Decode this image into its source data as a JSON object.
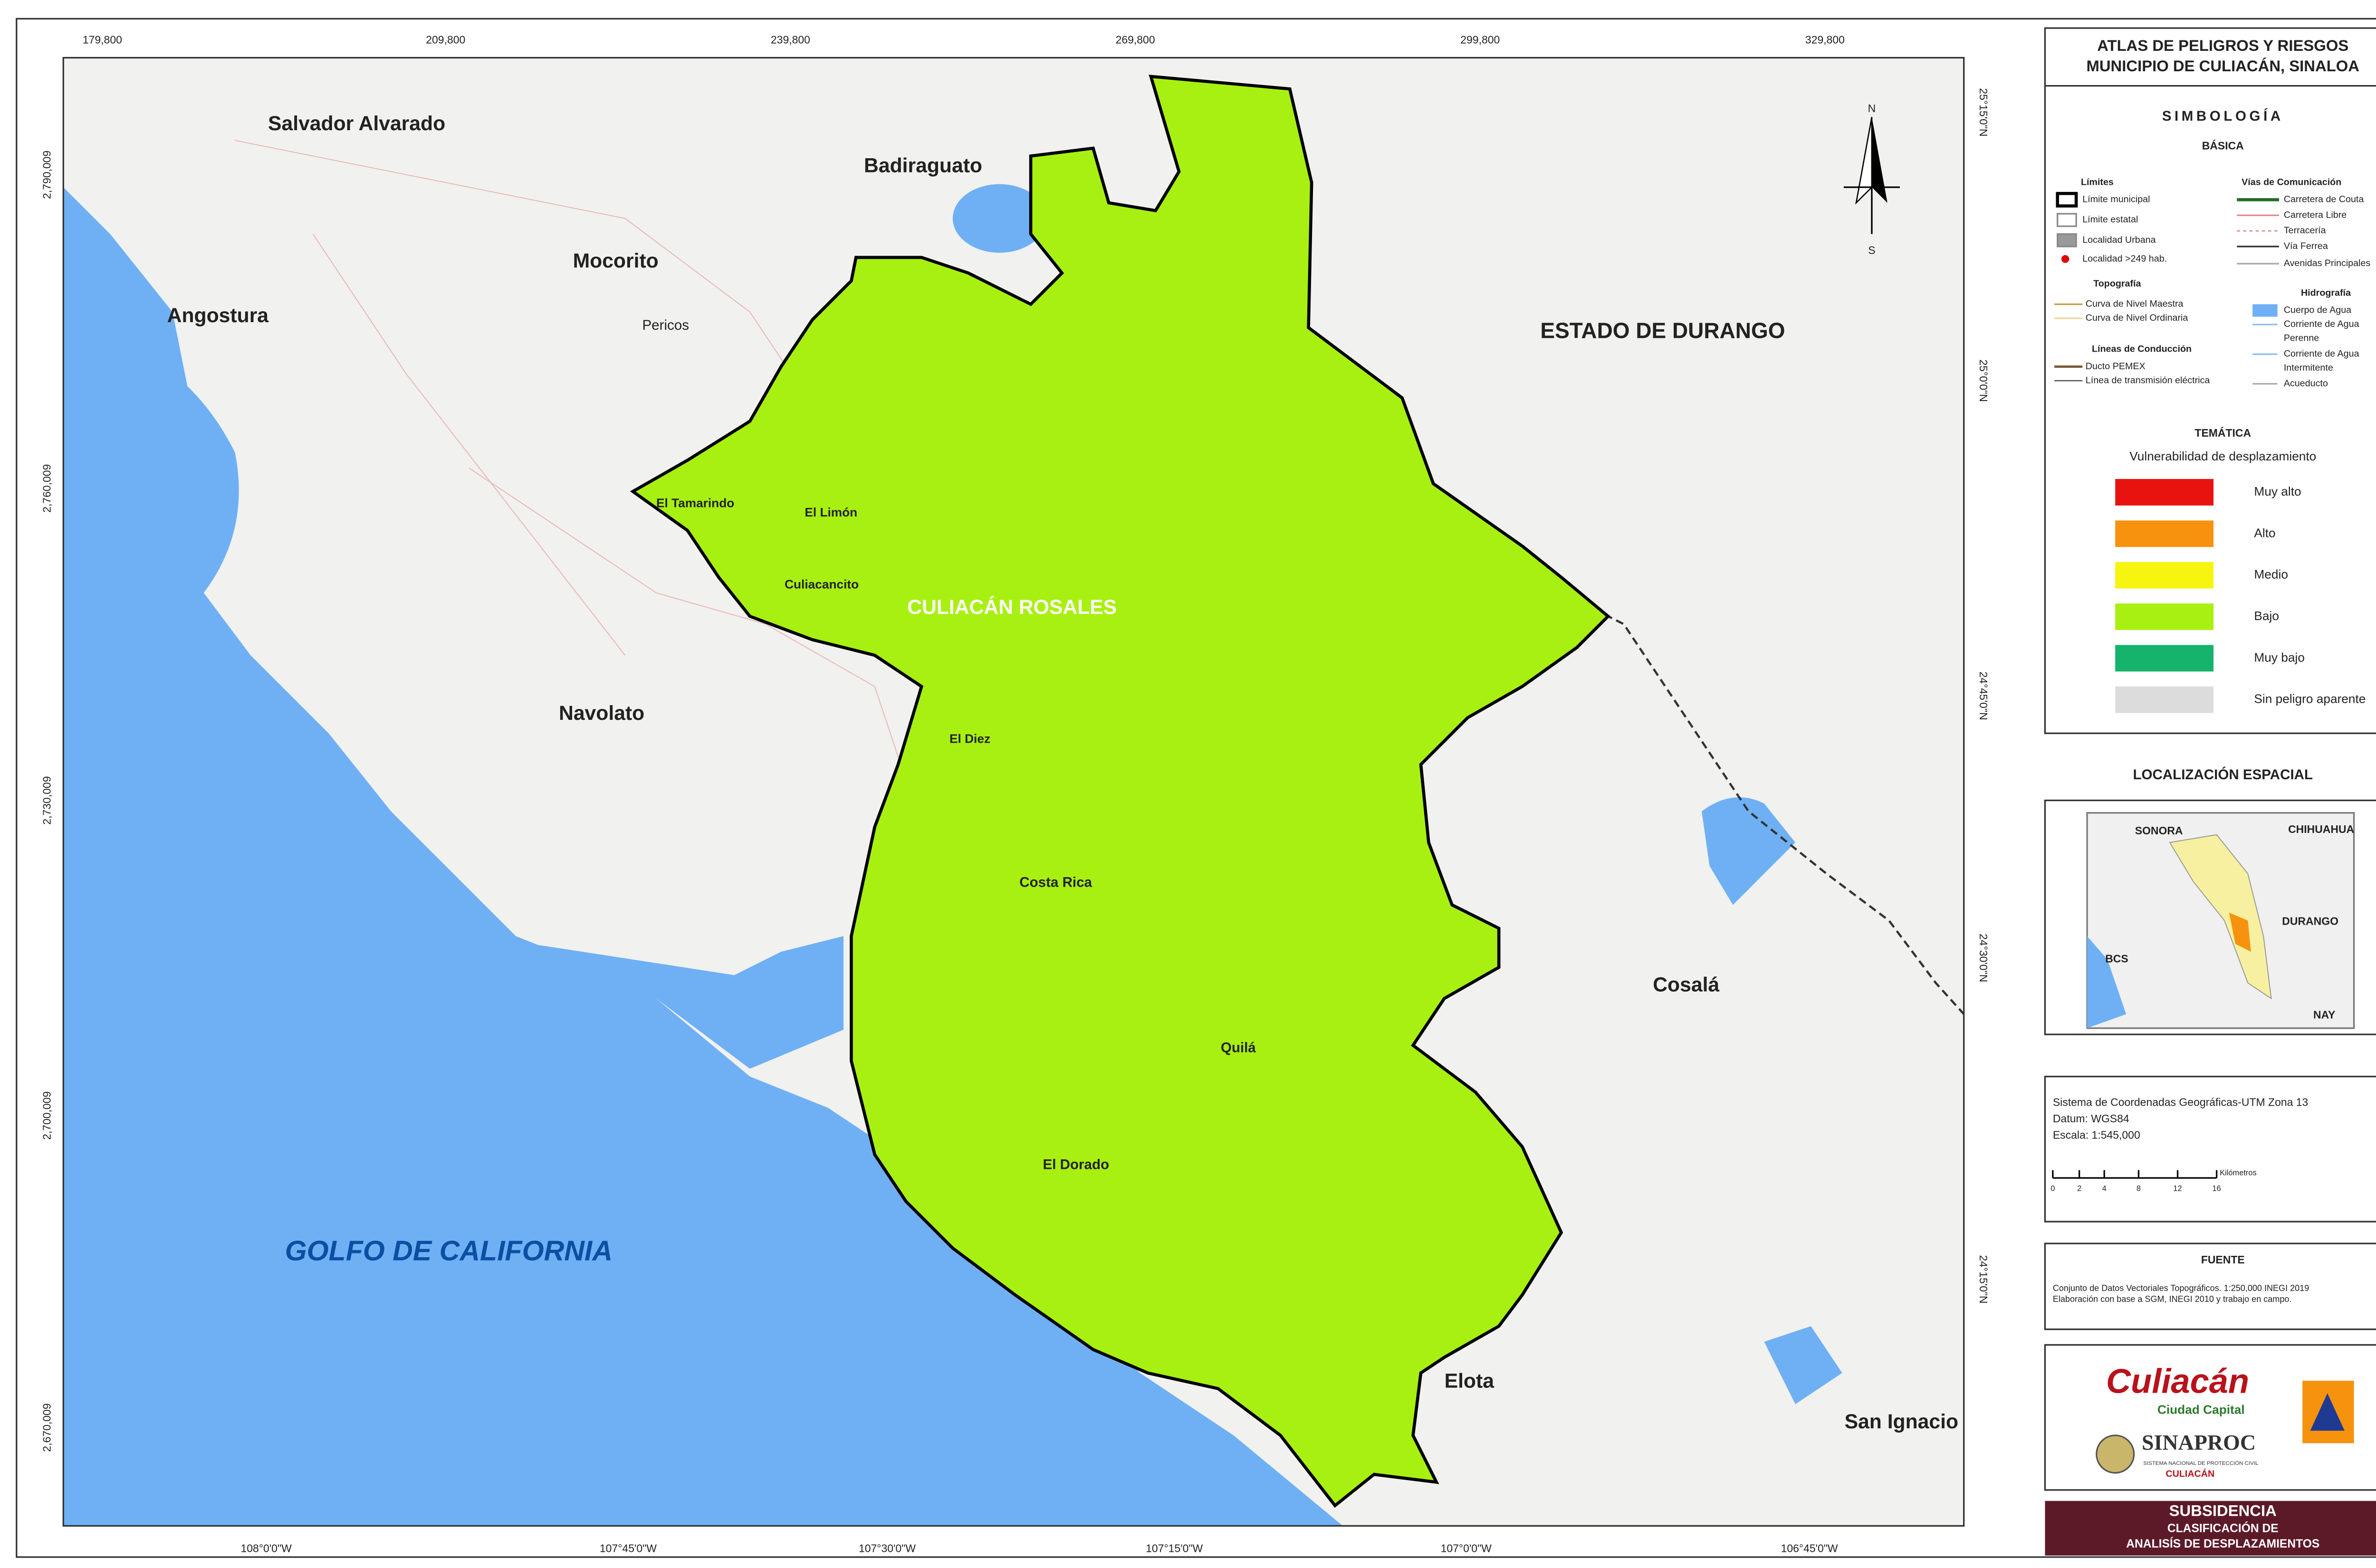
{
  "map": {
    "x_ticks_top": [
      "179,800",
      "209,800",
      "239,800",
      "269,800",
      "299,800",
      "329,800"
    ],
    "y_ticks_left": [
      "2,790,009",
      "2,760,009",
      "2,730,009",
      "2,700,009",
      "2,670,009"
    ],
    "x_ticks_bottom": [
      "108°0'0\"W",
      "107°45'0\"W",
      "107°30'0\"W",
      "107°15'0\"W",
      "107°0'0\"W",
      "106°45'0\"W"
    ],
    "y_ticks_right": [
      "25°15'0\"N",
      "25°0'0\"N",
      "24°45'0\"N",
      "24°30'0\"N",
      "24°15'0\"N"
    ],
    "places": [
      "Salvador Alvarado",
      "Badiraguato",
      "Mocorito",
      "Pericos",
      "Angostura",
      "ESTADO DE DURANGO",
      "El Tamarindo",
      "El Limón",
      "Culiacancito",
      "CULIACÁN ROSALES",
      "Navolato",
      "El Diez",
      "Costa Rica",
      "Cosalá",
      "Quilá",
      "El Dorado",
      "GOLFO DE CALIFORNIA",
      "Elota",
      "San Ignacio"
    ],
    "north": [
      "N",
      "S"
    ]
  },
  "panel": {
    "title": [
      "ATLAS DE PELIGROS Y RIESGOS",
      "MUNICIPIO DE CULIACÁN, SINALOA"
    ],
    "simbologia": "SIMBOLOGÍA",
    "basica": "BÁSICA",
    "limites": {
      "title": "Límites",
      "items": [
        "Límite municipal",
        "Límite estatal",
        "Localidad Urbana",
        "Localidad >249 hab."
      ]
    },
    "vias": {
      "title": "Vías de Comunicación",
      "items": [
        "Carretera de Couta",
        "Carretera Libre",
        "Terracería",
        "Vía Ferrea",
        "Avenidas Principales"
      ]
    },
    "topografia": {
      "title": "Topografía",
      "items": [
        "Curva de Nivel Maestra",
        "Curva de Nivel Ordinaria"
      ]
    },
    "hidrografia": {
      "title": "Hidrografía",
      "items": [
        [
          "Cuerpo de Agua"
        ],
        [
          "Corriente de Agua",
          "Perenne"
        ],
        [
          "Corriente de Agua",
          "Intermitente"
        ],
        [
          "Acueducto"
        ]
      ]
    },
    "conduccion": {
      "title": "Líneas de Conducción",
      "items": [
        "Ducto PEMEX",
        "Línea de transmisión eléctrica"
      ]
    },
    "tematica": "TEMÁTICA",
    "tematica_subtitle": "Vulnerabilidad de desplazamiento",
    "classes": [
      {
        "label": "Muy alto",
        "color": "#e8130f"
      },
      {
        "label": "Alto",
        "color": "#f7920f"
      },
      {
        "label": "Medio",
        "color": "#f5f50f"
      },
      {
        "label": "Bajo",
        "color": "#a8f011"
      },
      {
        "label": "Muy bajo",
        "color": "#15b36b"
      },
      {
        "label": "Sin peligro aparente",
        "color": "#dcdcdc"
      }
    ],
    "localizacion": "LOCALIZACIÓN ESPACIAL",
    "inset_labels": [
      "SONORA",
      "CHIHUAHUA",
      "DURANGO",
      "BCS",
      "NAY"
    ],
    "coordinates": [
      "Sistema de Coordenadas Geográficas-UTM Zona 13",
      "Datum: WGS84",
      "Escala: 1:545,000"
    ],
    "scale_unit": "Kilómetros",
    "scale_ticks": [
      "0",
      "2",
      "4",
      "8",
      "12",
      "16"
    ],
    "fuente": "FUENTE",
    "fuente_lines": [
      "Conjunto de Datos Vectoriales Topográficos. 1:250,000  INEGI 2019",
      "Elaboración con base a SGM, INEGI 2010  y trabajo en campo."
    ],
    "logos": [
      "Culiacán",
      "Ciudad Capital",
      "SINAPROC",
      "SISTEMA NACIONAL DE PROTECCIÓN CIVIL",
      "CULIACÁN"
    ],
    "banner": [
      "SUBSIDENCIA",
      "CLASIFICACIÓN DE",
      "ANALISÍS DE DESPLAZAMIENTOS"
    ]
  }
}
